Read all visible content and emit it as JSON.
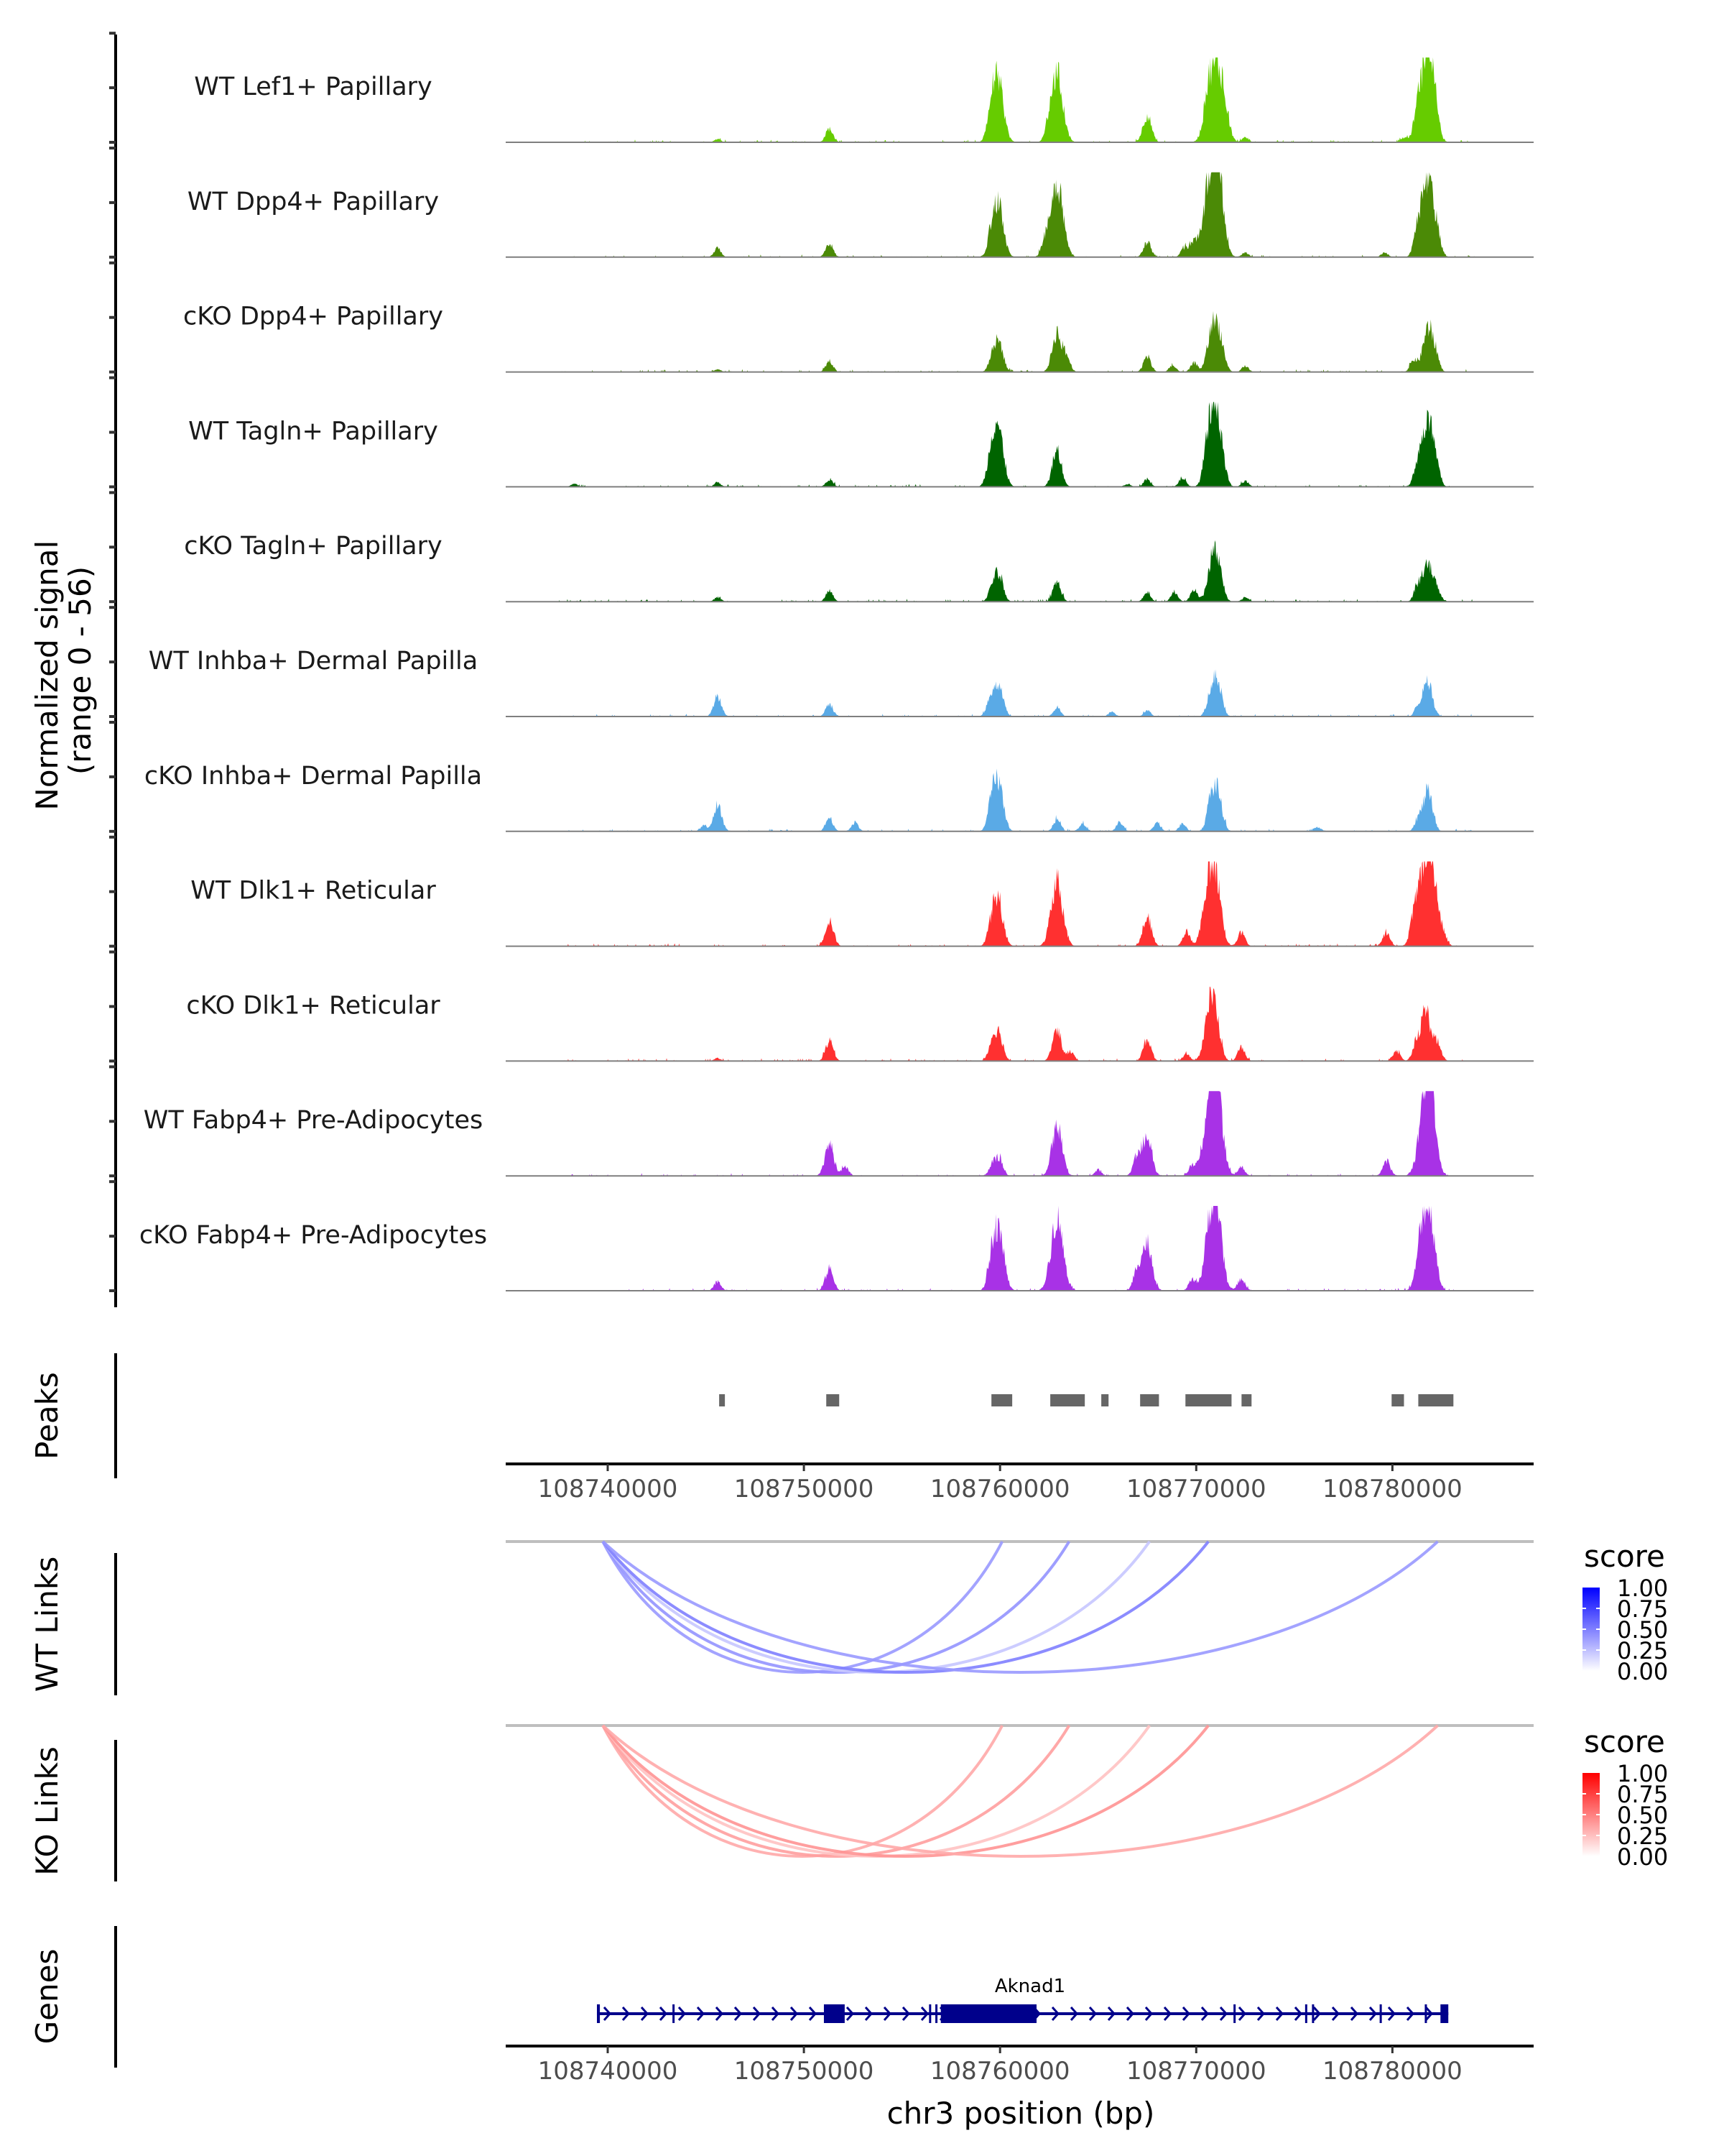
{
  "chart_data": {
    "type": "area",
    "title": "",
    "xlabel": "chr3 position (bp)",
    "ylabel": "Normalized signal\n(range 0 - 56)",
    "ylabel_lines": [
      "Normalized signal",
      "(range 0 - 56)"
    ],
    "ylim": [
      0,
      56
    ],
    "xlim": [
      108734800,
      108787200
    ],
    "x_ticks": [
      108740000,
      108750000,
      108760000,
      108770000,
      108780000
    ],
    "x_tick_labels": [
      "108740000",
      "108750000",
      "108760000",
      "108770000",
      "108780000"
    ],
    "grid": false,
    "tracks": [
      {
        "name": "WT Lef1+ Papillary",
        "color": "#66cc00",
        "peaks": [
          [
            108745600,
            2
          ],
          [
            108751300,
            9
          ],
          [
            108759600,
            22
          ],
          [
            108759950,
            34
          ],
          [
            108762900,
            45
          ],
          [
            108762450,
            5
          ],
          [
            108767500,
            18
          ],
          [
            108770750,
            44
          ],
          [
            108771300,
            38
          ],
          [
            108772500,
            3
          ],
          [
            108781800,
            52
          ],
          [
            108781300,
            17
          ],
          [
            108782100,
            12
          ],
          [
            108780600,
            3
          ]
        ]
      },
      {
        "name": "WT Dpp4+ Papillary",
        "color": "#4b8a06",
        "peaks": [
          [
            108745600,
            6
          ],
          [
            108751300,
            9
          ],
          [
            108759600,
            17
          ],
          [
            108759950,
            30
          ],
          [
            108762300,
            9
          ],
          [
            108762900,
            49
          ],
          [
            108767500,
            10
          ],
          [
            108769400,
            6
          ],
          [
            108769900,
            11
          ],
          [
            108770750,
            53
          ],
          [
            108771150,
            40
          ],
          [
            108772500,
            3
          ],
          [
            108779600,
            3
          ],
          [
            108781300,
            14
          ],
          [
            108781800,
            49
          ],
          [
            108782300,
            9
          ]
        ]
      },
      {
        "name": "cKO Dpp4+ Papillary",
        "color": "#4b8a06",
        "peaks": [
          [
            108745600,
            2
          ],
          [
            108751300,
            7
          ],
          [
            108759600,
            9
          ],
          [
            108759950,
            19
          ],
          [
            108762900,
            26
          ],
          [
            108763400,
            9
          ],
          [
            108767500,
            10
          ],
          [
            108768800,
            4
          ],
          [
            108769900,
            6
          ],
          [
            108770750,
            22
          ],
          [
            108771150,
            26
          ],
          [
            108772500,
            4
          ],
          [
            108781100,
            8
          ],
          [
            108781800,
            28
          ],
          [
            108782200,
            10
          ]
        ]
      },
      {
        "name": "WT Tagln+ Papillary",
        "color": "#006400",
        "peaks": [
          [
            108738300,
            2
          ],
          [
            108745600,
            3
          ],
          [
            108751300,
            5
          ],
          [
            108759600,
            24
          ],
          [
            108759950,
            32
          ],
          [
            108762900,
            24
          ],
          [
            108766500,
            2
          ],
          [
            108767500,
            5
          ],
          [
            108769300,
            6
          ],
          [
            108770600,
            22
          ],
          [
            108770900,
            33
          ],
          [
            108771200,
            26
          ],
          [
            108772500,
            4
          ],
          [
            108781300,
            14
          ],
          [
            108781800,
            40
          ],
          [
            108782200,
            12
          ]
        ]
      },
      {
        "name": "cKO Tagln+ Papillary",
        "color": "#006400",
        "peaks": [
          [
            108745600,
            3
          ],
          [
            108751300,
            7
          ],
          [
            108759600,
            9
          ],
          [
            108759950,
            17
          ],
          [
            108762900,
            13
          ],
          [
            108767500,
            6
          ],
          [
            108768900,
            6
          ],
          [
            108769900,
            8
          ],
          [
            108770750,
            20
          ],
          [
            108771100,
            25
          ],
          [
            108772500,
            3
          ],
          [
            108781300,
            10
          ],
          [
            108781800,
            26
          ],
          [
            108782300,
            7
          ]
        ]
      },
      {
        "name": "WT Inhba+ Dermal Papilla",
        "color": "#5aaae6",
        "peaks": [
          [
            108745600,
            13
          ],
          [
            108751300,
            8
          ],
          [
            108759500,
            11
          ],
          [
            108759950,
            20
          ],
          [
            108762900,
            6
          ],
          [
            108765700,
            3
          ],
          [
            108767500,
            4
          ],
          [
            108770750,
            15
          ],
          [
            108771100,
            21
          ],
          [
            108781300,
            6
          ],
          [
            108781800,
            24
          ]
        ]
      },
      {
        "name": "cKO Inhba+ Dermal Papilla",
        "color": "#5aaae6",
        "peaks": [
          [
            108744900,
            4
          ],
          [
            108745600,
            17
          ],
          [
            108751300,
            9
          ],
          [
            108752600,
            6
          ],
          [
            108759600,
            18
          ],
          [
            108759950,
            28
          ],
          [
            108762900,
            8
          ],
          [
            108764200,
            5
          ],
          [
            108766100,
            6
          ],
          [
            108768000,
            6
          ],
          [
            108769300,
            5
          ],
          [
            108770750,
            18
          ],
          [
            108771100,
            23
          ],
          [
            108776200,
            3
          ],
          [
            108781300,
            7
          ],
          [
            108781800,
            26
          ]
        ]
      },
      {
        "name": "WT Dlk1+ Reticular",
        "color": "#ff3030",
        "peaks": [
          [
            108751300,
            17
          ],
          [
            108759600,
            16
          ],
          [
            108759950,
            26
          ],
          [
            108762900,
            43
          ],
          [
            108767500,
            19
          ],
          [
            108769500,
            9
          ],
          [
            108770650,
            42
          ],
          [
            108771050,
            33
          ],
          [
            108772300,
            9
          ],
          [
            108779700,
            9
          ],
          [
            108781100,
            15
          ],
          [
            108781700,
            56
          ],
          [
            108782100,
            29
          ],
          [
            108782600,
            7
          ]
        ]
      },
      {
        "name": "cKO Dlk1+ Reticular",
        "color": "#ff3030",
        "peaks": [
          [
            108745600,
            2
          ],
          [
            108751300,
            13
          ],
          [
            108759600,
            12
          ],
          [
            108759950,
            17
          ],
          [
            108762900,
            21
          ],
          [
            108763600,
            6
          ],
          [
            108767500,
            14
          ],
          [
            108769500,
            5
          ],
          [
            108770650,
            30
          ],
          [
            108771000,
            25
          ],
          [
            108772300,
            9
          ],
          [
            108780200,
            7
          ],
          [
            108781200,
            9
          ],
          [
            108781700,
            33
          ],
          [
            108782300,
            11
          ]
        ]
      },
      {
        "name": "WT Fabp4+ Pre-Adipocytes",
        "color": "#a832e6",
        "peaks": [
          [
            108751300,
            21
          ],
          [
            108752100,
            6
          ],
          [
            108759600,
            7
          ],
          [
            108759950,
            11
          ],
          [
            108762900,
            33
          ],
          [
            108765000,
            4
          ],
          [
            108767000,
            13
          ],
          [
            108767500,
            25
          ],
          [
            108769800,
            7
          ],
          [
            108770750,
            56
          ],
          [
            108771100,
            38
          ],
          [
            108772300,
            6
          ],
          [
            108779700,
            10
          ],
          [
            108781700,
            53
          ],
          [
            108782000,
            32
          ]
        ]
      },
      {
        "name": "cKO Fabp4+ Pre-Adipocytes",
        "color": "#a832e6",
        "peaks": [
          [
            108745600,
            6
          ],
          [
            108751300,
            14
          ],
          [
            108759600,
            18
          ],
          [
            108759950,
            36
          ],
          [
            108762900,
            48
          ],
          [
            108767000,
            13
          ],
          [
            108767500,
            31
          ],
          [
            108769800,
            7
          ],
          [
            108770750,
            45
          ],
          [
            108771100,
            34
          ],
          [
            108772300,
            8
          ],
          [
            108781400,
            6
          ],
          [
            108781700,
            52
          ],
          [
            108782100,
            16
          ]
        ]
      }
    ],
    "peaks_track": {
      "label": "Peaks",
      "color": "#666666",
      "regions": [
        [
          108745680,
          108745970
        ],
        [
          108751140,
          108751800
        ],
        [
          108759560,
          108760620
        ],
        [
          108762560,
          108764320
        ],
        [
          108765160,
          108765530
        ],
        [
          108767140,
          108768100
        ],
        [
          108769450,
          108771800
        ],
        [
          108772310,
          108772820
        ],
        [
          108779960,
          108780590
        ],
        [
          108781320,
          108783110
        ]
      ]
    },
    "links": [
      {
        "label": "WT Links",
        "legend_title": "score",
        "low_color": "#ffffff",
        "high_color": "#0000ff",
        "legend_ticks": [
          "1.00",
          "0.75",
          "0.50",
          "0.25",
          "0.00"
        ],
        "items": [
          {
            "start": 108739750,
            "end": 108760110,
            "score": 0.4
          },
          {
            "start": 108739750,
            "end": 108763520,
            "score": 0.42
          },
          {
            "start": 108739750,
            "end": 108767620,
            "score": 0.22
          },
          {
            "start": 108739750,
            "end": 108770620,
            "score": 0.5
          },
          {
            "start": 108739750,
            "end": 108782310,
            "score": 0.4
          }
        ]
      },
      {
        "label": "KO Links",
        "legend_title": "score",
        "low_color": "#ffffff",
        "high_color": "#ff0000",
        "legend_ticks": [
          "1.00",
          "0.75",
          "0.50",
          "0.25",
          "0.00"
        ],
        "items": [
          {
            "start": 108739750,
            "end": 108760110,
            "score": 0.34
          },
          {
            "start": 108739750,
            "end": 108763520,
            "score": 0.38
          },
          {
            "start": 108739750,
            "end": 108767620,
            "score": 0.24
          },
          {
            "start": 108739750,
            "end": 108770620,
            "score": 0.42
          },
          {
            "start": 108739750,
            "end": 108782310,
            "score": 0.34
          }
        ]
      }
    ],
    "genes_track": {
      "label": "Genes",
      "color": "#00008b",
      "gene": {
        "name": "Aknad1",
        "strand": "+",
        "start": 108739450,
        "end": 108782850,
        "exons": [
          [
            108739450,
            108739600
          ],
          [
            108743300,
            108743350
          ],
          [
            108751020,
            108752080
          ],
          [
            108756380,
            108756450
          ],
          [
            108756700,
            108756800
          ],
          [
            108756980,
            108761860
          ],
          [
            108771900,
            108772000
          ],
          [
            108775550,
            108775650
          ],
          [
            108775900,
            108776000
          ],
          [
            108779350,
            108779400
          ],
          [
            108781650,
            108781750
          ],
          [
            108782450,
            108782850
          ]
        ]
      }
    }
  }
}
